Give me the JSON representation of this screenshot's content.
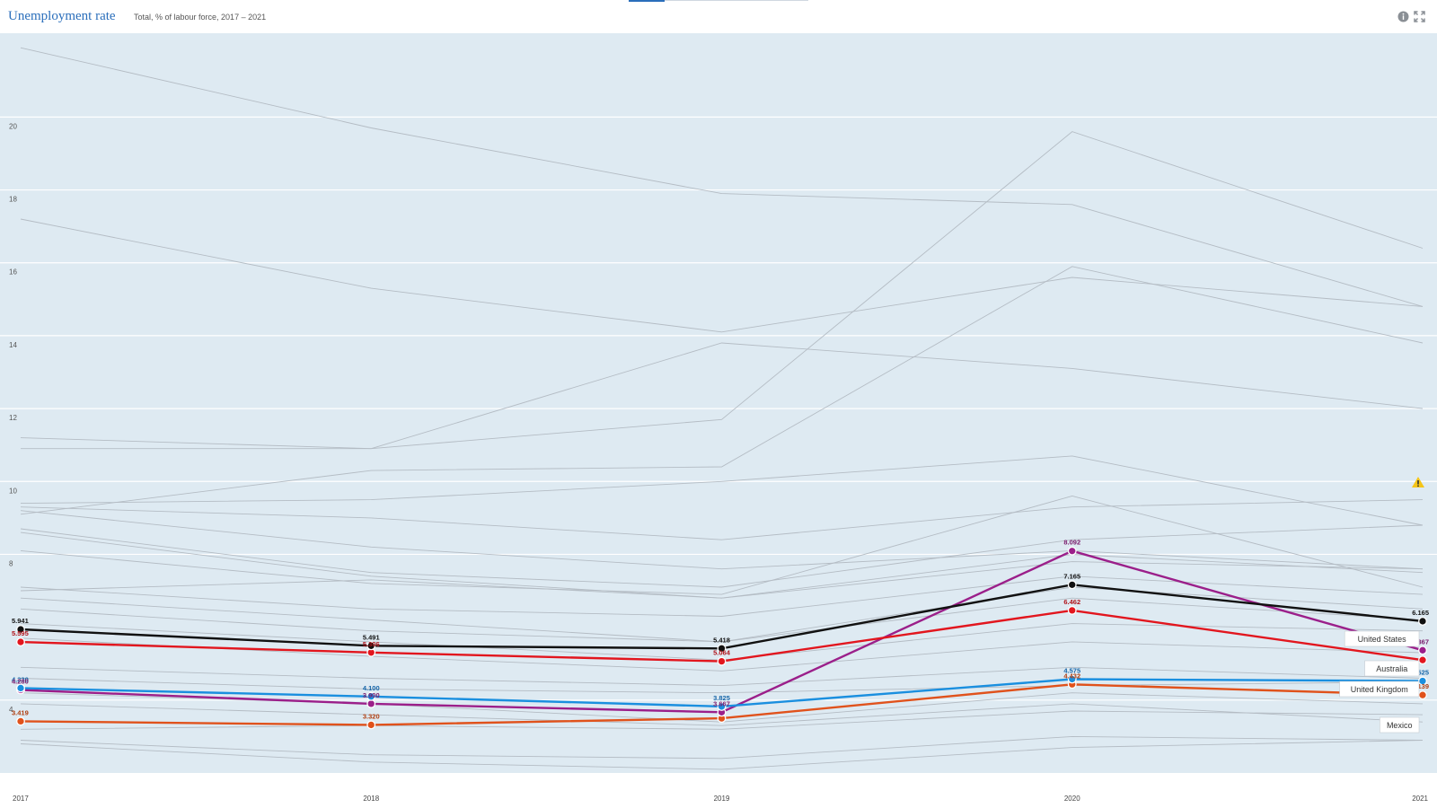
{
  "header": {
    "title": "Unemployment rate",
    "subtitle": "Total, % of labour force, 2017 – 2021"
  },
  "icons": {
    "info": "info-icon",
    "expand": "expand-icon",
    "warning": "warning-icon"
  },
  "colors": {
    "plot_background": "#deeaf2",
    "grid": "#ffffff",
    "background_lines": "#b4bcc4",
    "title": "#2a6ebb"
  },
  "chart_data": {
    "type": "line",
    "x": [
      "2017",
      "2018",
      "2019",
      "2020",
      "2021"
    ],
    "ylim": [
      2,
      22.3
    ],
    "yticks": [
      "4",
      "8",
      "10",
      "12",
      "14",
      "16",
      "18",
      "20"
    ],
    "grid": true,
    "series": [
      {
        "name": "United States",
        "color": "#111111",
        "values": [
          5.941,
          5.491,
          5.418,
          7.165,
          6.165
        ],
        "labels": [
          "5.941",
          "5.491",
          "5.418",
          "7.165",
          "6.165"
        ],
        "label_color": "#111111"
      },
      {
        "name": "Australia",
        "color": "#e2161e",
        "values": [
          5.595,
          5.306,
          5.064,
          6.462,
          5.1
        ],
        "labels": [
          "5.595",
          "5.306",
          "5.064",
          "6.462",
          ""
        ],
        "label_color": "#b0121a"
      },
      {
        "name": "United Kingdom",
        "color": "#1a8fdf",
        "values": [
          4.33,
          4.1,
          3.825,
          4.575,
          4.525
        ],
        "labels": [
          "4.330",
          "4.100",
          "3.825",
          "4.575",
          "4.525"
        ],
        "label_color": "#1565a8"
      },
      {
        "name": "",
        "color": "#9b1f8a",
        "values": [
          4.28,
          3.9,
          3.667,
          8.092,
          5.367
        ],
        "labels": [
          "4.280",
          "3.900",
          "3.667",
          "8.092",
          "5.367"
        ],
        "label_color": "#7a1a6c"
      },
      {
        "name": "Mexico",
        "color": "#e0521c",
        "values": [
          3.419,
          3.32,
          3.5,
          4.432,
          4.139
        ],
        "labels": [
          "3.419",
          "3.320",
          "",
          "4.432",
          "4.139"
        ],
        "label_color": "#b03e10"
      }
    ],
    "background_series": [
      [
        21.9,
        19.7,
        17.9,
        17.6,
        14.8
      ],
      [
        17.2,
        15.3,
        14.1,
        15.6,
        14.8
      ],
      [
        11.2,
        10.9,
        13.8,
        13.1,
        12.0
      ],
      [
        10.9,
        10.9,
        11.7,
        19.6,
        16.4
      ],
      [
        9.1,
        10.3,
        10.4,
        15.9,
        13.8
      ],
      [
        9.4,
        9.5,
        10.0,
        10.7,
        8.8
      ],
      [
        9.3,
        9.0,
        8.4,
        9.3,
        9.5
      ],
      [
        9.2,
        8.2,
        7.6,
        8.1,
        7.6
      ],
      [
        8.7,
        7.5,
        7.1,
        8.4,
        8.8
      ],
      [
        8.6,
        7.4,
        6.8,
        8.0,
        7.5
      ],
      [
        8.1,
        7.2,
        6.9,
        9.6,
        7.1
      ],
      [
        7.0,
        7.3,
        6.8,
        7.8,
        7.6
      ],
      [
        7.1,
        6.5,
        6.3,
        7.4,
        6.9
      ],
      [
        6.8,
        6.2,
        5.6,
        7.1,
        6.5
      ],
      [
        6.5,
        5.9,
        5.6,
        6.8,
        6.2
      ],
      [
        6.1,
        5.6,
        5.1,
        6.1,
        5.9
      ],
      [
        5.7,
        5.2,
        4.8,
        5.6,
        5.3
      ],
      [
        4.9,
        4.6,
        4.4,
        4.9,
        4.6
      ],
      [
        4.6,
        4.3,
        4.2,
        4.4,
        4.5
      ],
      [
        4.2,
        3.9,
        3.4,
        4.2,
        3.9
      ],
      [
        3.9,
        3.6,
        3.3,
        3.9,
        3.4
      ],
      [
        3.2,
        3.3,
        3.2,
        3.7,
        3.6
      ],
      [
        2.9,
        2.5,
        2.4,
        3.0,
        2.9
      ],
      [
        2.8,
        2.3,
        2.1,
        2.7,
        2.9
      ]
    ]
  }
}
